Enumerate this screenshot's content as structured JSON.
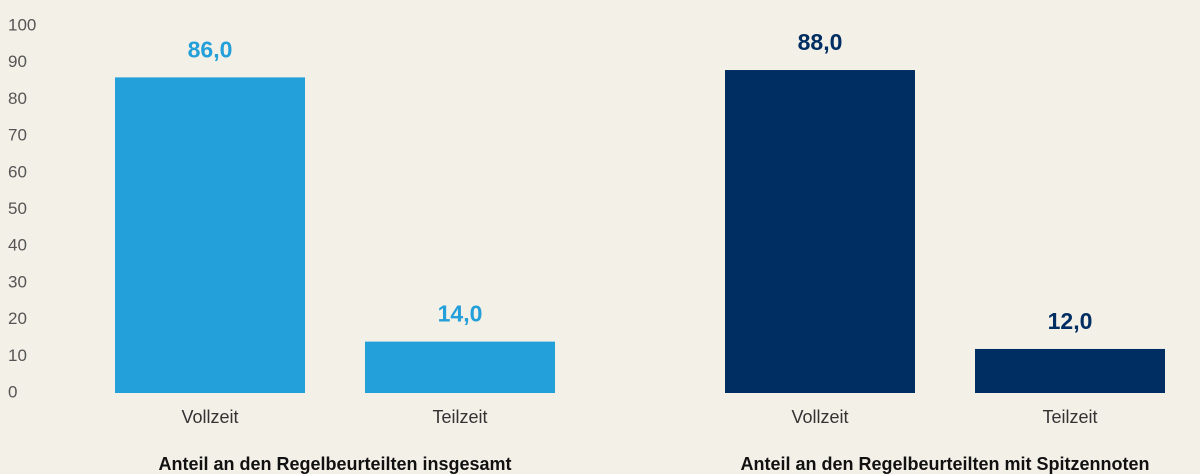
{
  "chart_data": [
    {
      "type": "bar",
      "title": "Anteil an den Regelbeurteilten insgesamt",
      "categories": [
        "Vollzeit",
        "Teilzeit"
      ],
      "values": [
        86,
        14
      ],
      "value_labels": [
        "86,0",
        "14,0"
      ],
      "color": "#239fd9",
      "ylim": [
        0,
        100
      ],
      "yticks": [
        0,
        10,
        20,
        30,
        40,
        50,
        60,
        70,
        80,
        90,
        100
      ]
    },
    {
      "type": "bar",
      "title": "Anteil an den Regelbeurteilten mit Spitzennoten",
      "categories": [
        "Vollzeit",
        "Teilzeit"
      ],
      "values": [
        88,
        12
      ],
      "value_labels": [
        "88,0",
        "12,0"
      ],
      "color": "#002d62",
      "ylim": [
        0,
        100
      ]
    }
  ]
}
